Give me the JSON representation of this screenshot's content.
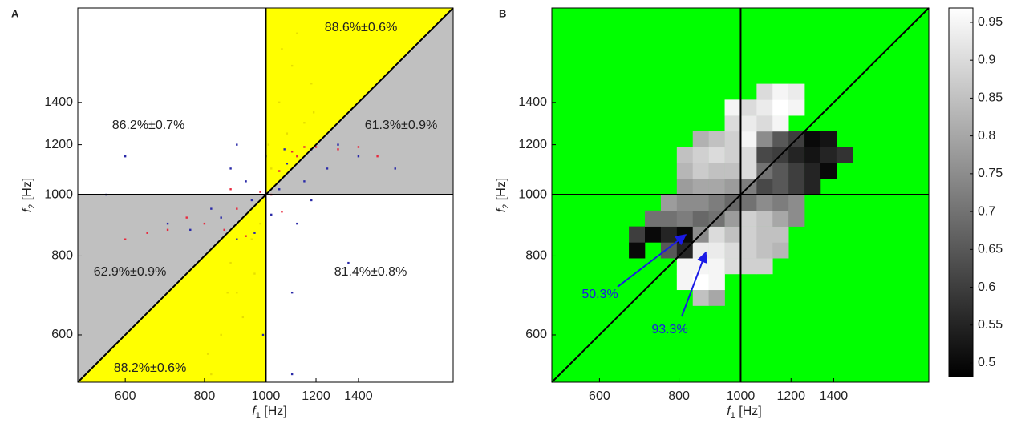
{
  "chart_data": [
    {
      "type": "scatter",
      "panel": "A",
      "scale": "log",
      "xlabel": {
        "var": "f",
        "sub": "1",
        "unit": "[Hz]"
      },
      "ylabel": {
        "var": "f",
        "sub": "2",
        "unit": "[Hz]"
      },
      "xlim": [
        505,
        1975
      ],
      "ylim": [
        505,
        1975
      ],
      "xticks": [
        600,
        800,
        1000,
        1200,
        1400
      ],
      "yticks": [
        600,
        800,
        1000,
        1200,
        1400
      ],
      "reference_lines": {
        "x": 1000,
        "y": 1000
      },
      "region_colors": {
        "upper": "#ffff00",
        "lower": "#c0c0c0"
      },
      "annotations": [
        "88.6%±0.6%",
        "86.2%±0.7%",
        "61.3%±0.9%",
        "62.9%±0.9%",
        "81.4%±0.8%",
        "88.2%±0.6%"
      ],
      "series": [
        {
          "color": "#2a2aa8",
          "x": [
            950,
            1050,
            880,
            1120,
            1000,
            900,
            1180,
            820,
            1080,
            960,
            1150,
            700,
            1250,
            1300,
            600,
            900,
            1100,
            1350,
            850,
            1020,
            1070,
            760,
            1180,
            1400,
            930,
            990,
            1600,
            560,
            1100
          ],
          "values": [
            980,
            1020,
            1100,
            900,
            1150,
            850,
            1180,
            950,
            1120,
            870,
            1050,
            900,
            1100,
            1200,
            1150,
            1200,
            700,
            780,
            920,
            930,
            1180,
            880,
            980,
            1150,
            1050,
            600,
            1100,
            1000,
            520
          ]
        },
        {
          "color": "#e8283c",
          "x": [
            980,
            1120,
            860,
            700,
            1200,
            900,
            1050,
            800,
            1300,
            650,
            1150,
            930,
            1020,
            1400,
            750,
            1100,
            880,
            1060,
            1500,
            600
          ],
          "values": [
            1010,
            1150,
            880,
            880,
            1190,
            950,
            1090,
            900,
            1180,
            870,
            1190,
            860,
            1000,
            1190,
            920,
            1170,
            1020,
            940,
            1150,
            850
          ]
        },
        {
          "color": "#e6de00",
          "x": [
            850,
            900,
            820,
            950,
            980,
            880,
            920,
            810,
            960,
            870,
            1050,
            1100,
            1150,
            1080,
            1180,
            1020,
            1120,
            1060,
            1190,
            1010
          ],
          "values": [
            600,
            700,
            520,
            850,
            900,
            780,
            640,
            560,
            750,
            700,
            1400,
            1600,
            1300,
            1250,
            1500,
            1100,
            1800,
            1700,
            1350,
            1200
          ]
        }
      ]
    },
    {
      "type": "heatmap",
      "panel": "B",
      "scale": "log",
      "xlabel": {
        "var": "f",
        "sub": "1",
        "unit": "[Hz]"
      },
      "ylabel": {
        "var": "f",
        "sub": "2",
        "unit": "[Hz]"
      },
      "xlim": [
        505,
        1975
      ],
      "ylim": [
        505,
        1975
      ],
      "xticks": [
        600,
        800,
        1000,
        1200,
        1400
      ],
      "yticks": [
        600,
        800,
        1000,
        1200,
        1400
      ],
      "reference_lines": {
        "x": 1000,
        "y": 1000
      },
      "background": "#00ff00",
      "xbins": [
        667.4,
        707.1,
        749.2,
        793.7,
        840.9,
        890.9,
        943.9,
        1000,
        1059.5,
        1122.5,
        1189.2,
        1259.9,
        1334.8,
        1414.2,
        1498.3
      ],
      "ybins": [
        667.4,
        707.1,
        749.2,
        793.7,
        840.9,
        890.9,
        943.9,
        1000,
        1059.5,
        1122.5,
        1189.2,
        1259.9,
        1334.8,
        1414.2,
        1498.3
      ],
      "values": [
        [
          null,
          null,
          null,
          null,
          0.85,
          0.8,
          null,
          null,
          null,
          null,
          null,
          null,
          null,
          null
        ],
        [
          null,
          null,
          null,
          0.95,
          0.97,
          0.95,
          null,
          null,
          null,
          null,
          null,
          null,
          null,
          null
        ],
        [
          null,
          null,
          null,
          0.95,
          0.95,
          0.95,
          0.9,
          0.88,
          0.88,
          null,
          null,
          null,
          null,
          null
        ],
        [
          0.5,
          null,
          0.65,
          0.55,
          0.93,
          0.93,
          0.9,
          0.88,
          0.85,
          0.83,
          null,
          null,
          null,
          null
        ],
        [
          0.6,
          0.5,
          0.55,
          0.5,
          0.75,
          0.9,
          0.85,
          0.88,
          0.85,
          0.85,
          null,
          null,
          null,
          null
        ],
        [
          null,
          0.7,
          0.7,
          0.72,
          0.68,
          0.7,
          0.78,
          0.88,
          0.85,
          0.8,
          0.75,
          null,
          null,
          null
        ],
        [
          null,
          null,
          0.78,
          0.75,
          0.75,
          0.72,
          0.68,
          0.7,
          0.75,
          0.72,
          0.75,
          null,
          null,
          null
        ],
        [
          null,
          null,
          null,
          0.78,
          0.8,
          0.8,
          0.78,
          0.72,
          0.62,
          0.65,
          0.6,
          0.55,
          null,
          null
        ],
        [
          null,
          null,
          null,
          0.83,
          0.87,
          0.85,
          0.85,
          0.9,
          0.7,
          0.65,
          0.6,
          0.55,
          0.5,
          null
        ],
        [
          null,
          null,
          null,
          0.85,
          0.88,
          0.9,
          0.88,
          0.9,
          0.62,
          0.6,
          0.55,
          0.52,
          0.55,
          0.58
        ],
        [
          null,
          null,
          null,
          null,
          0.82,
          0.85,
          0.88,
          0.95,
          0.75,
          0.65,
          0.6,
          0.5,
          0.52,
          null
        ],
        [
          null,
          null,
          null,
          null,
          null,
          null,
          0.9,
          0.93,
          0.9,
          0.95,
          null,
          null,
          null,
          null
        ],
        [
          null,
          null,
          null,
          null,
          null,
          null,
          0.95,
          0.9,
          0.93,
          0.97,
          0.95,
          null,
          null,
          null
        ],
        [
          null,
          null,
          null,
          null,
          null,
          null,
          null,
          null,
          0.9,
          0.95,
          0.93,
          null,
          null,
          null
        ]
      ],
      "clim": [
        0.482,
        0.969
      ],
      "cticks": [
        0.5,
        0.55,
        0.6,
        0.65,
        0.7,
        0.75,
        0.8,
        0.85,
        0.9,
        0.95
      ],
      "annotations": [
        "50.3%",
        "93.3%"
      ]
    }
  ]
}
